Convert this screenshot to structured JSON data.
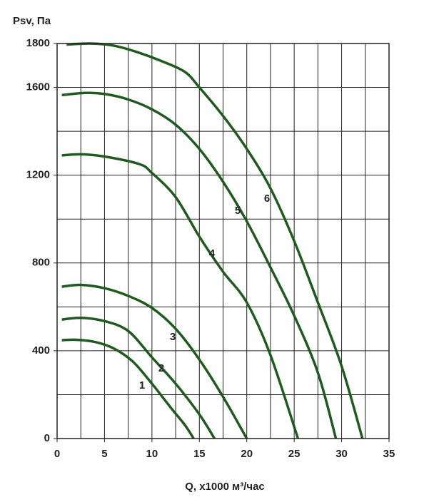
{
  "chart_data": {
    "type": "line",
    "y_label": "Psv, Па",
    "x_label": "Q, x1000 м³/час",
    "xlim": [
      0,
      35
    ],
    "xticks": [
      0,
      5,
      10,
      15,
      20,
      25,
      30,
      35
    ],
    "ylim": [
      0,
      1800
    ],
    "yticks": [
      0,
      400,
      800,
      1200,
      1600,
      1800
    ],
    "x_grid": [
      0,
      2.5,
      5,
      7.5,
      10,
      12.5,
      15,
      17.5,
      20,
      22.5,
      25,
      27.5,
      30,
      32.5,
      35
    ],
    "y_grid": [
      0,
      200,
      400,
      600,
      800,
      1000,
      1200,
      1400,
      1600,
      1800
    ],
    "series": [
      {
        "name": "1",
        "color": "#1d5c1d",
        "x": [
          0.5,
          2,
          4,
          6,
          8,
          10,
          12,
          13.5,
          14.4
        ],
        "values": [
          448,
          450,
          440,
          410,
          350,
          250,
          140,
          60,
          0
        ]
      },
      {
        "name": "2",
        "color": "#1d5c1d",
        "x": [
          0.5,
          2.5,
          5,
          7.5,
          10,
          12.5,
          15,
          16.6
        ],
        "values": [
          542,
          550,
          535,
          490,
          370,
          250,
          110,
          0
        ]
      },
      {
        "name": "3",
        "color": "#1d5c1d",
        "x": [
          0.5,
          2.5,
          5,
          7.5,
          10,
          12.5,
          15,
          17.5,
          20
        ],
        "values": [
          692,
          700,
          685,
          650,
          595,
          500,
          360,
          190,
          0
        ]
      },
      {
        "name": "4",
        "color": "#1d5c1d",
        "x": [
          0.5,
          2.5,
          5,
          8.7,
          10,
          12.5,
          15,
          17.5,
          20,
          22.5,
          25.4
        ],
        "values": [
          1290,
          1295,
          1285,
          1250,
          1210,
          1100,
          920,
          760,
          620,
          380,
          0
        ]
      },
      {
        "name": "5",
        "color": "#1d5c1d",
        "x": [
          0.5,
          3,
          5,
          7.5,
          10,
          12.5,
          15,
          17.5,
          20,
          22.5,
          25,
          27.5,
          29.4
        ],
        "values": [
          1565,
          1575,
          1570,
          1545,
          1500,
          1430,
          1320,
          1170,
          990,
          780,
          560,
          300,
          0
        ]
      },
      {
        "name": "6",
        "color": "#1d5c1d",
        "x": [
          1,
          3.5,
          6,
          8.5,
          11,
          13.5,
          15,
          17.5,
          20,
          22.5,
          25,
          27.5,
          30,
          32.2
        ],
        "values": [
          1795,
          1800,
          1790,
          1760,
          1720,
          1670,
          1600,
          1470,
          1320,
          1140,
          900,
          620,
          330,
          0
        ]
      }
    ]
  }
}
